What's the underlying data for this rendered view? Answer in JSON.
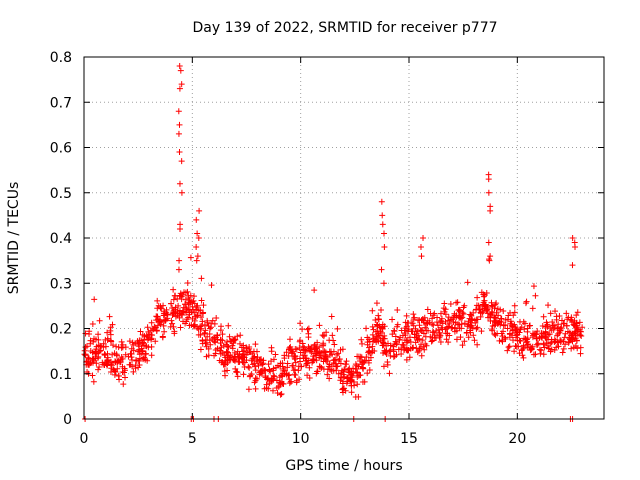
{
  "chart_data": {
    "type": "scatter",
    "title": "Day 139 of 2022, SRMTID for receiver p777",
    "xlabel": "GPS time / hours",
    "ylabel": "SRMTID / TECUs",
    "xlim": [
      0,
      24
    ],
    "ylim": [
      0,
      0.8
    ],
    "x_ticks": [
      0,
      5,
      10,
      15,
      20
    ],
    "x_tick_labels": [
      "0",
      "5",
      "10",
      "15",
      "20"
    ],
    "y_ticks": [
      0,
      0.1,
      0.2,
      0.3,
      0.4,
      0.5,
      0.6,
      0.7,
      0.8
    ],
    "y_tick_labels": [
      "0",
      "0.1",
      "0.2",
      "0.3",
      "0.4",
      "0.5",
      "0.6",
      "0.7",
      "0.8"
    ],
    "grid": true,
    "marker": "plus",
    "series_color": "#ff0000",
    "profile": {
      "description": "Representative envelope of the dense point cloud (hour -> typical SRMTID)",
      "x": [
        0,
        1,
        2,
        3,
        3.5,
        4,
        4.5,
        5,
        5.5,
        6,
        7,
        8,
        9,
        10,
        11,
        12,
        12.5,
        13,
        13.5,
        14,
        15,
        16,
        17,
        18,
        18.5,
        19,
        20,
        21,
        22,
        23
      ],
      "y": [
        0.15,
        0.14,
        0.12,
        0.17,
        0.24,
        0.22,
        0.26,
        0.24,
        0.2,
        0.17,
        0.14,
        0.11,
        0.1,
        0.14,
        0.15,
        0.1,
        0.09,
        0.12,
        0.2,
        0.16,
        0.18,
        0.2,
        0.21,
        0.21,
        0.25,
        0.22,
        0.19,
        0.17,
        0.19,
        0.19
      ],
      "spread": 0.05
    },
    "peaks": [
      {
        "x": 4.45,
        "y": [
          0.78,
          0.77,
          0.74,
          0.73,
          0.68,
          0.65,
          0.63,
          0.59,
          0.57,
          0.52,
          0.5,
          0.43,
          0.42,
          0.35,
          0.33
        ]
      },
      {
        "x": 5.25,
        "y": [
          0.46,
          0.44,
          0.41,
          0.4,
          0.38,
          0.36,
          0.35
        ]
      },
      {
        "x": 13.8,
        "y": [
          0.48,
          0.45,
          0.43,
          0.41,
          0.38,
          0.33,
          0.3
        ]
      },
      {
        "x": 15.6,
        "y": [
          0.4,
          0.38,
          0.36
        ]
      },
      {
        "x": 18.75,
        "y": [
          0.54,
          0.53,
          0.5,
          0.47,
          0.46,
          0.39,
          0.36,
          0.35
        ]
      },
      {
        "x": 22.6,
        "y": [
          0.4,
          0.39,
          0.38,
          0.34
        ]
      }
    ],
    "zero_points": [
      0.05,
      4.95,
      5.05,
      6.0,
      6.2,
      12.45,
      13.9,
      22.45,
      22.55
    ]
  }
}
